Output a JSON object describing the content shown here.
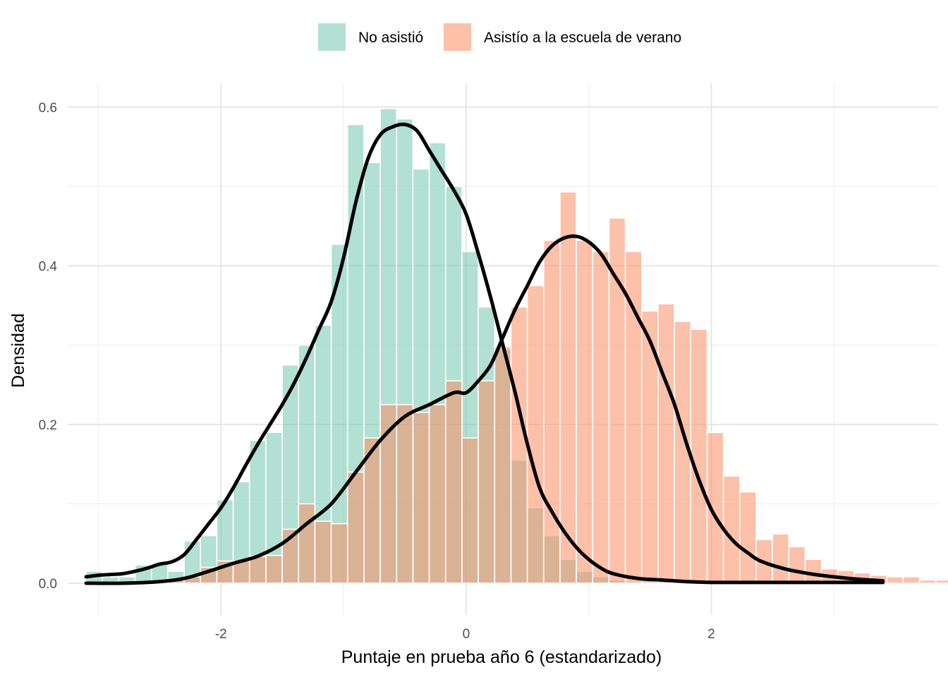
{
  "chart_data": {
    "type": "bar",
    "title": "",
    "xlabel": "Puntaje en prueba año 6 (estandarizado)",
    "ylabel": "Densidad",
    "xlim": [
      -3.25,
      3.85
    ],
    "ylim": [
      -0.04,
      0.63
    ],
    "x_ticks": [
      -2,
      0,
      2
    ],
    "x_tick_labels": [
      "-2",
      "0",
      "2"
    ],
    "y_ticks": [
      0.0,
      0.2,
      0.4,
      0.6
    ],
    "y_tick_labels": [
      "0.0",
      "0.2",
      "0.4",
      "0.6"
    ],
    "grid": true,
    "legend_position": "top",
    "bin_start": -3.1,
    "bin_width": 0.1333,
    "series": [
      {
        "name": "No asistió",
        "color": "#66C2A5",
        "opacity": 0.5,
        "values": [
          0.015,
          0.008,
          0.008,
          0.023,
          0.023,
          0.015,
          0.053,
          0.06,
          0.105,
          0.128,
          0.18,
          0.19,
          0.275,
          0.3,
          0.325,
          0.427,
          0.578,
          0.53,
          0.598,
          0.585,
          0.522,
          0.555,
          0.5,
          0.418,
          0.348,
          0.295,
          0.155,
          0.095,
          0.06,
          0.03,
          0.015,
          0.008,
          0.004,
          0.002,
          0.001,
          0,
          0,
          0,
          0,
          0,
          0,
          0,
          0,
          0,
          0,
          0,
          0,
          0,
          0,
          0,
          0,
          0,
          0
        ]
      },
      {
        "name": "Asistío a la escuela de verano",
        "color": "#FC8D62",
        "opacity": 0.55,
        "values": [
          0,
          0,
          0,
          0,
          0,
          0.004,
          0.008,
          0.02,
          0.028,
          0.028,
          0.034,
          0.035,
          0.068,
          0.1,
          0.078,
          0.075,
          0.14,
          0.183,
          0.225,
          0.225,
          0.215,
          0.225,
          0.255,
          0.183,
          0.255,
          0.298,
          0.348,
          0.375,
          0.432,
          0.493,
          0.432,
          0.418,
          0.46,
          0.418,
          0.343,
          0.352,
          0.33,
          0.32,
          0.19,
          0.135,
          0.115,
          0.055,
          0.062,
          0.046,
          0.03,
          0.018,
          0.016,
          0.013,
          0.01,
          0.008,
          0.008,
          0.004,
          0.004
        ]
      }
    ],
    "density_curves": [
      {
        "name": "No asistió",
        "x": [
          -3.1,
          -3.0,
          -2.9,
          -2.8,
          -2.7,
          -2.6,
          -2.5,
          -2.4,
          -2.3,
          -2.2,
          -2.1,
          -2.0,
          -1.9,
          -1.8,
          -1.7,
          -1.6,
          -1.5,
          -1.4,
          -1.3,
          -1.2,
          -1.1,
          -1.0,
          -0.9,
          -0.8,
          -0.7,
          -0.6,
          -0.5,
          -0.4,
          -0.3,
          -0.2,
          -0.1,
          0.0,
          0.1,
          0.2,
          0.3,
          0.4,
          0.5,
          0.6,
          0.7,
          0.8,
          0.9,
          1.0,
          1.1,
          1.2,
          1.4,
          1.6,
          1.8,
          2.0,
          2.4,
          2.8,
          3.2,
          3.4
        ],
        "y": [
          0.008,
          0.01,
          0.011,
          0.012,
          0.015,
          0.019,
          0.024,
          0.027,
          0.036,
          0.055,
          0.075,
          0.095,
          0.12,
          0.148,
          0.175,
          0.2,
          0.225,
          0.253,
          0.285,
          0.32,
          0.355,
          0.41,
          0.48,
          0.535,
          0.565,
          0.575,
          0.578,
          0.57,
          0.545,
          0.52,
          0.495,
          0.465,
          0.415,
          0.36,
          0.3,
          0.24,
          0.175,
          0.12,
          0.09,
          0.065,
          0.045,
          0.03,
          0.019,
          0.012,
          0.006,
          0.004,
          0.002,
          0.001,
          0.001,
          0.001,
          0.001,
          0.001
        ]
      },
      {
        "name": "Asistío a la escuela de verano",
        "x": [
          -3.1,
          -2.8,
          -2.5,
          -2.3,
          -2.1,
          -1.9,
          -1.7,
          -1.5,
          -1.3,
          -1.1,
          -0.9,
          -0.7,
          -0.5,
          -0.3,
          -0.1,
          0.0,
          0.1,
          0.2,
          0.3,
          0.4,
          0.5,
          0.6,
          0.7,
          0.8,
          0.9,
          1.0,
          1.1,
          1.2,
          1.3,
          1.4,
          1.5,
          1.6,
          1.7,
          1.8,
          1.9,
          2.0,
          2.1,
          2.2,
          2.3,
          2.4,
          2.6,
          2.8,
          3.0,
          3.2,
          3.4
        ],
        "y": [
          0.0,
          0.0,
          0.002,
          0.006,
          0.015,
          0.025,
          0.034,
          0.05,
          0.075,
          0.1,
          0.14,
          0.18,
          0.21,
          0.225,
          0.24,
          0.24,
          0.255,
          0.275,
          0.31,
          0.345,
          0.375,
          0.405,
          0.425,
          0.435,
          0.437,
          0.43,
          0.415,
          0.39,
          0.365,
          0.335,
          0.305,
          0.265,
          0.225,
          0.175,
          0.13,
          0.093,
          0.068,
          0.05,
          0.038,
          0.028,
          0.018,
          0.012,
          0.008,
          0.005,
          0.003
        ]
      }
    ]
  }
}
